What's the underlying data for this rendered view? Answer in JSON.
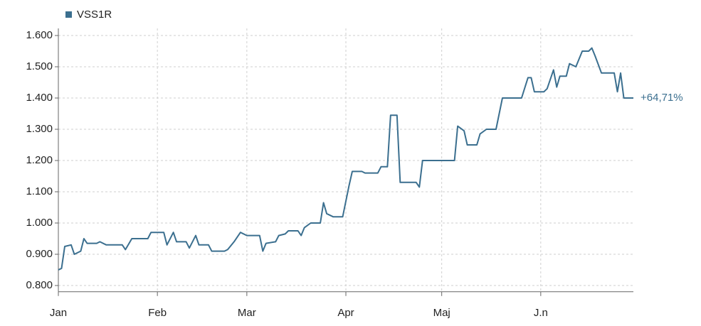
{
  "chart_data": {
    "type": "line",
    "series": [
      {
        "name": "VSS1R",
        "color": "#3b6f8f",
        "x": [
          0,
          1,
          2,
          4,
          5,
          7,
          8,
          9,
          12,
          13,
          15,
          20,
          21,
          23,
          28,
          29,
          33,
          34,
          36,
          37,
          40,
          41,
          43,
          44,
          47,
          48,
          52,
          53,
          55,
          57,
          59,
          63,
          64,
          65,
          68,
          69,
          71,
          72,
          75,
          76,
          77,
          79,
          82,
          83,
          84,
          86,
          89,
          91,
          92,
          95,
          96,
          100,
          101,
          103,
          104,
          106,
          107,
          112,
          113,
          114,
          124,
          125,
          127,
          128,
          131,
          132,
          134,
          137,
          139,
          145,
          147,
          148,
          149,
          152,
          153,
          155,
          156,
          157,
          159,
          160,
          162,
          163,
          164,
          166,
          167,
          168,
          170,
          174,
          175,
          176,
          177,
          180
        ],
        "values": [
          0.85,
          0.855,
          0.925,
          0.93,
          0.9,
          0.91,
          0.95,
          0.935,
          0.935,
          0.94,
          0.93,
          0.93,
          0.915,
          0.95,
          0.95,
          0.97,
          0.97,
          0.93,
          0.97,
          0.94,
          0.94,
          0.92,
          0.96,
          0.93,
          0.93,
          0.91,
          0.91,
          0.915,
          0.94,
          0.97,
          0.96,
          0.96,
          0.91,
          0.935,
          0.94,
          0.96,
          0.965,
          0.975,
          0.975,
          0.96,
          0.985,
          1.0,
          1.0,
          1.065,
          1.03,
          1.02,
          1.02,
          1.12,
          1.165,
          1.165,
          1.16,
          1.16,
          1.18,
          1.18,
          1.345,
          1.345,
          1.13,
          1.13,
          1.115,
          1.2,
          1.2,
          1.31,
          1.295,
          1.25,
          1.25,
          1.285,
          1.3,
          1.3,
          1.4,
          1.4,
          1.465,
          1.465,
          1.42,
          1.42,
          1.43,
          1.49,
          1.435,
          1.47,
          1.47,
          1.51,
          1.5,
          1.525,
          1.55,
          1.55,
          1.56,
          1.535,
          1.48,
          1.48,
          1.42,
          1.48,
          1.4,
          1.4
        ]
      }
    ],
    "annotation": "+64,71%",
    "xlim": [
      0,
      180
    ],
    "xticks": [
      {
        "value": 0,
        "label": "Jan"
      },
      {
        "value": 31,
        "label": "Feb"
      },
      {
        "value": 59,
        "label": "Mar"
      },
      {
        "value": 90,
        "label": "Apr"
      },
      {
        "value": 120,
        "label": "Maj"
      },
      {
        "value": 151,
        "label": "J.n"
      }
    ],
    "ylim": [
      0.78,
      1.6
    ],
    "yticks": [
      {
        "value": 0.8,
        "label": "0.800"
      },
      {
        "value": 0.9,
        "label": "0.900"
      },
      {
        "value": 1.0,
        "label": "1.000"
      },
      {
        "value": 1.1,
        "label": "1.100"
      },
      {
        "value": 1.2,
        "label": "1.200"
      },
      {
        "value": 1.3,
        "label": "1.300"
      },
      {
        "value": 1.4,
        "label": "1.400"
      },
      {
        "value": 1.5,
        "label": "1.500"
      },
      {
        "value": 1.6,
        "label": "1.600"
      }
    ],
    "grid": true
  }
}
